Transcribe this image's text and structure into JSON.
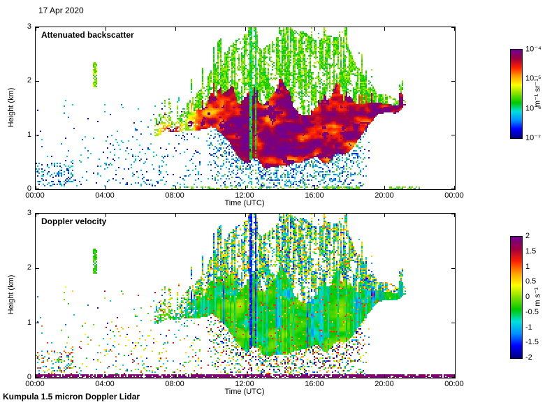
{
  "figure": {
    "date": "17 Apr 2020",
    "footer": "Kumpula 1.5 micron Doppler Lidar",
    "background": "#ffffff",
    "frame_color": "#000000"
  },
  "colormap": [
    "#000080",
    "#0000ff",
    "#0090ff",
    "#00e0e0",
    "#00c800",
    "#80e000",
    "#ffff00",
    "#ffa000",
    "#ff2000",
    "#a00040",
    "#700090"
  ],
  "chart_data": [
    {
      "type": "heatmap",
      "title": "Attenuated backscatter",
      "xlabel": "Time (UTC)",
      "ylabel": "Height (km)",
      "x_ticks": [
        "00:00",
        "04:00",
        "08:00",
        "12:00",
        "16:00",
        "20:00",
        "00:00"
      ],
      "x_range_hours": [
        0,
        24
      ],
      "y_ticks": [
        "0",
        "1",
        "2",
        "3"
      ],
      "y_range_km": [
        0,
        3
      ],
      "colorbar": {
        "label": "m⁻¹ sr⁻¹",
        "scale": "log",
        "ticks": [
          "10⁻⁴",
          "10⁻⁵",
          "10⁻⁶",
          "10⁻⁷"
        ],
        "min": "1e-7",
        "max": "1e-4"
      },
      "cloud_layer": {
        "hours": [
          6.8,
          8.0,
          9.0,
          10.0,
          11.0,
          12.0,
          13.0,
          14.0,
          15.0,
          16.0,
          17.0,
          18.0,
          19.0,
          19.6,
          21.2
        ],
        "base_km": [
          1.0,
          1.05,
          1.1,
          1.15,
          0.9,
          0.55,
          0.45,
          0.5,
          0.45,
          0.5,
          0.55,
          0.8,
          1.25,
          1.45,
          1.5
        ],
        "top_km": [
          1.15,
          1.35,
          1.7,
          2.2,
          2.45,
          2.8,
          2.65,
          2.95,
          2.9,
          2.95,
          2.75,
          2.55,
          2.1,
          1.8,
          1.75
        ]
      },
      "core_hours": [
        6.8,
        7.5,
        9.0,
        10.0,
        11.0,
        13.0,
        18.0,
        19.0,
        19.6,
        21.2
      ],
      "core_level": [
        0.55,
        0.6,
        0.65,
        0.75,
        0.85,
        0.88,
        0.88,
        0.82,
        0.9,
        0.88
      ],
      "precip_hours": [
        9.5,
        10.5,
        18.5,
        19.2
      ],
      "features": [
        "Scattered boundary-layer aerosol speckle (blue) below 1.5 km before 08:00",
        "Isolated elevated aerosol patch (green) near 2.2 km around 03:30",
        "Cloud/precipitation layer from ~07:00, base ~1 km, deepening to 0.5-3 km between 11:00 and 18:00",
        "Strong backscatter 10⁻⁵-10⁻⁴ m⁻¹ sr⁻¹ (red-purple) in cloud core with green spiky fringes at cloud top",
        "Precipitation/virga speckle (blue) below cloud base 10:00-19:00",
        "Thin residual layer near 1.5-1.8 km from 19:30 until ~21:00, clear afterwards",
        "Intermittent near-surface returns (green) along 0 km, mainly 16:30-18:30 and 20:30-22:00"
      ]
    },
    {
      "type": "heatmap",
      "title": "Doppler velocity",
      "xlabel": "Time (UTC)",
      "ylabel": "Height (km)",
      "x_ticks": [
        "00:00",
        "04:00",
        "08:00",
        "12:00",
        "16:00",
        "20:00",
        "00:00"
      ],
      "x_range_hours": [
        0,
        24
      ],
      "y_ticks": [
        "0",
        "1",
        "2",
        "3"
      ],
      "y_range_km": [
        0,
        3
      ],
      "colorbar": {
        "label": "m s⁻¹",
        "scale": "linear",
        "ticks": [
          "2",
          "1.5",
          "1",
          "0.5",
          "0",
          "-0.5",
          "-1",
          "-1.5",
          "-2"
        ],
        "min": -2,
        "max": 2
      },
      "cloud_layer": {
        "hours": [
          6.8,
          8.0,
          9.0,
          10.0,
          11.0,
          12.0,
          13.0,
          14.0,
          15.0,
          16.0,
          17.0,
          18.0,
          19.0,
          19.6,
          21.2
        ],
        "base_km": [
          1.0,
          1.05,
          1.1,
          1.15,
          0.9,
          0.55,
          0.45,
          0.5,
          0.45,
          0.5,
          0.55,
          0.8,
          1.25,
          1.45,
          1.5
        ],
        "top_km": [
          1.15,
          1.35,
          1.7,
          2.2,
          2.45,
          2.8,
          2.65,
          2.95,
          2.9,
          2.95,
          2.75,
          2.55,
          2.1,
          1.8,
          1.75
        ]
      },
      "core_hours": [
        6.8,
        7.5,
        9.0,
        10.0,
        11.0,
        13.0,
        18.0,
        19.0,
        19.6,
        21.2
      ],
      "core_level": [
        0.4,
        0.4,
        0.4,
        0.42,
        0.42,
        0.42,
        0.42,
        0.42,
        0.42,
        0.42
      ],
      "precip_hours": [
        9.5,
        10.5,
        18.5,
        19.2
      ],
      "features": [
        "In-cloud velocities mostly -1 to +0.5 m s⁻¹ (blue-cyan-green) with vertical downdraft streaks",
        "Random multicoloured noise speckle below cloud base and at cloud edges",
        "Deep blue columns of strong negative velocity near 12:20-12:40 reaching 3 km",
        "Near-continuous line of high positive values (purple) along 0 km across the whole day",
        "Same cloud envelope as backscatter panel: ~07:00-21:00, up to ~3 km"
      ]
    }
  ]
}
